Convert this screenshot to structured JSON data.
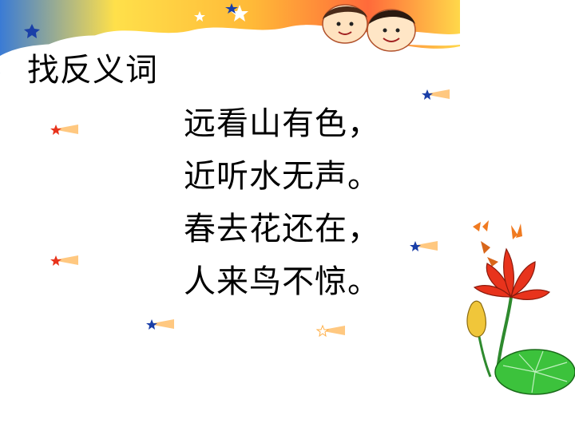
{
  "title": "找反义词",
  "poem": {
    "lines": [
      "远看山有色，",
      "近听水无声。",
      "春去花还在，",
      "人来鸟不惊。"
    ]
  },
  "colors": {
    "banner_yellow": "#ffd63a",
    "banner_blue": "#3a7bd5",
    "banner_orange": "#f57b20",
    "flower_red": "#e8331c",
    "leaf_green": "#3cc23c"
  }
}
